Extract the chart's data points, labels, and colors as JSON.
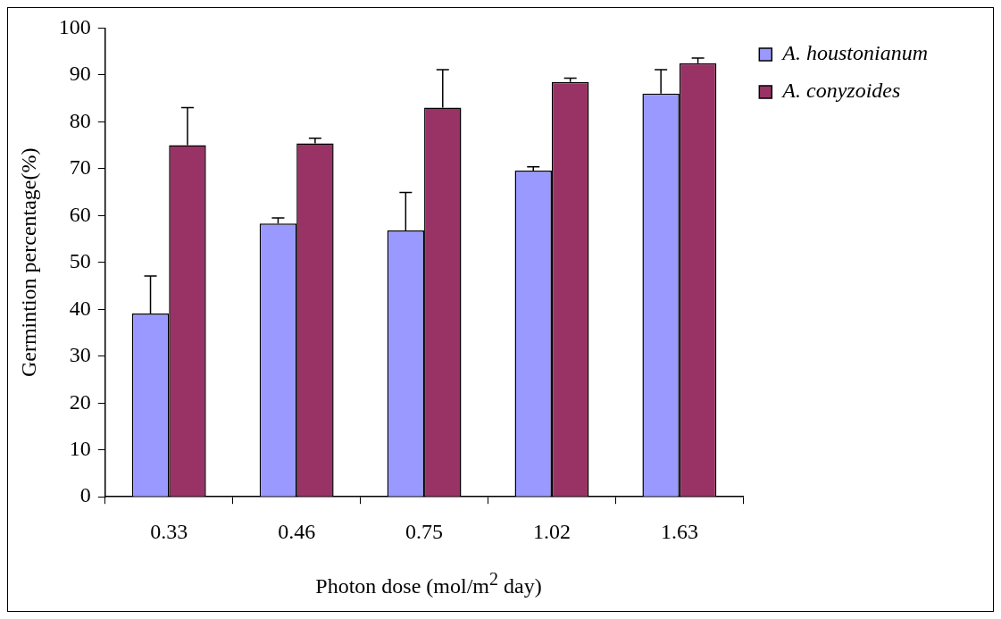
{
  "chart_data": {
    "type": "bar",
    "xlabel": "Photon dose (mol/m$^{2}$ day)",
    "ylabel": "Germintion percentage(%)",
    "categories": [
      "0.33",
      "0.46",
      "0.75",
      "1.02",
      "1.63"
    ],
    "series": [
      {
        "name": "A. houstonianum",
        "color": "#9999ff",
        "values": [
          39.1,
          58.3,
          56.8,
          69.6,
          86.0
        ],
        "errors": [
          [
            39.1,
            47.1
          ],
          [
            58.3,
            59.5
          ],
          [
            56.8,
            64.9
          ],
          [
            69.6,
            70.4
          ],
          [
            86.0,
            91.1
          ]
        ]
      },
      {
        "name": "A. conyzoides",
        "color": "#993366",
        "values": [
          75.0,
          75.4,
          83.0,
          88.5,
          92.5
        ],
        "errors": [
          [
            75.0,
            83.0
          ],
          [
            75.4,
            76.5
          ],
          [
            83.0,
            91.1
          ],
          [
            88.5,
            89.3
          ],
          [
            92.5,
            93.6
          ]
        ]
      }
    ],
    "ylim": [
      0,
      100
    ],
    "yticks": [
      0,
      10,
      20,
      30,
      40,
      50,
      60,
      70,
      80,
      90,
      100
    ],
    "grid": false,
    "legend": "top right"
  }
}
